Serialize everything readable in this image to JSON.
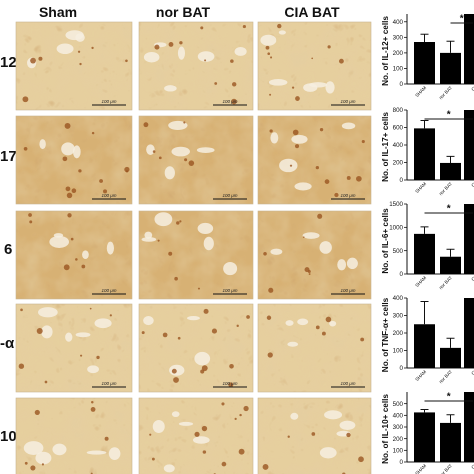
{
  "figure": {
    "column_headers": [
      "Sham",
      "nor BAT",
      "CIA BAT"
    ],
    "row_labels": [
      "12",
      "17",
      "6",
      "-α",
      "10"
    ],
    "scale_bar_label": "100 μm"
  },
  "colors": {
    "bar": "#000000",
    "tissue_light": "#e6cf9e",
    "tissue_mid": "#d7b174",
    "stain_dark": "#9a5520",
    "panel_border": "#c9b58f"
  },
  "chart_data": [
    {
      "type": "bar",
      "categories": [
        "SHAM",
        "nor BAT",
        "CI"
      ],
      "ylabel": "No. of IL-12+ cells",
      "yticks": [
        0,
        100,
        200,
        300,
        400
      ],
      "ylim": [
        0,
        450
      ],
      "values": [
        270,
        200,
        470
      ],
      "errors": [
        50,
        75,
        null
      ],
      "significance": [
        {
          "label": "*",
          "from": 1,
          "to": 2
        }
      ]
    },
    {
      "type": "bar",
      "categories": [
        "SHAM",
        "nor BAT",
        "CI"
      ],
      "ylabel": "No. of IL-17+ cells",
      "yticks": [
        0,
        200,
        400,
        600,
        800
      ],
      "ylim": [
        0,
        800
      ],
      "values": [
        590,
        195,
        800
      ],
      "errors": [
        90,
        75,
        null
      ],
      "significance": [
        {
          "label": "*",
          "from": 0,
          "to": 2
        }
      ]
    },
    {
      "type": "bar",
      "categories": [
        "SHAM",
        "nor BAT",
        "CI"
      ],
      "ylabel": "No. of IL-6+ cells",
      "yticks": [
        0,
        500,
        1000,
        1500
      ],
      "ylim": [
        0,
        1500
      ],
      "values": [
        860,
        370,
        1500
      ],
      "errors": [
        150,
        160,
        null
      ],
      "significance": [
        {
          "label": "*",
          "from": 0,
          "to": 2
        }
      ]
    },
    {
      "type": "bar",
      "categories": [
        "SHAM",
        "nor BAT",
        "CI"
      ],
      "ylabel": "No. of TNF-α+ cells",
      "yticks": [
        0,
        100,
        200,
        300,
        400
      ],
      "ylim": [
        0,
        400
      ],
      "values": [
        250,
        115,
        400
      ],
      "errors": [
        130,
        55,
        null
      ],
      "significance": []
    },
    {
      "type": "bar",
      "categories": [
        "SHAM",
        "nor BAT",
        "CI"
      ],
      "ylabel": "No. of IL-10+ cells",
      "yticks": [
        0,
        100,
        200,
        300,
        400,
        500
      ],
      "ylim": [
        0,
        600
      ],
      "values": [
        425,
        335,
        600
      ],
      "errors": [
        25,
        70,
        null
      ],
      "significance": [
        {
          "label": "*",
          "from": 0,
          "to": 2
        }
      ]
    }
  ]
}
